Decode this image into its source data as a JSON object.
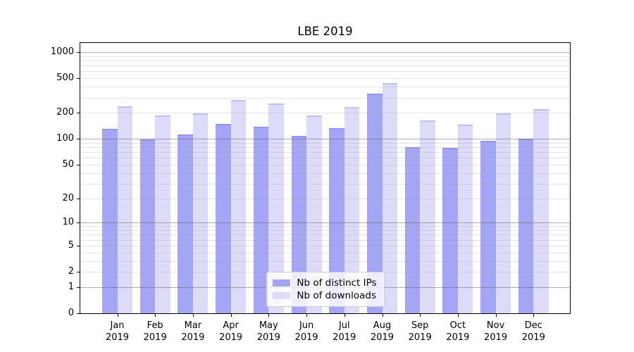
{
  "title": "LBE 2019",
  "chart_data": {
    "type": "bar",
    "title": "LBE 2019",
    "categories": [
      "Jan 2019",
      "Feb 2019",
      "Mar 2019",
      "Apr 2019",
      "May 2019",
      "Jun 2019",
      "Jul 2019",
      "Aug 2019",
      "Sep 2019",
      "Oct 2019",
      "Nov 2019",
      "Dec 2019"
    ],
    "series": [
      {
        "name": "Nb of distinct IPs",
        "color": "#a5a5f5",
        "values": [
          130,
          98,
          112,
          150,
          138,
          108,
          132,
          333,
          80,
          78,
          95,
          100
        ]
      },
      {
        "name": "Nb of downloads",
        "color": "#dcdcf9",
        "values": [
          240,
          188,
          199,
          280,
          256,
          188,
          232,
          442,
          164,
          147,
          197,
          219
        ]
      }
    ],
    "y_scale": "symlog",
    "y_ticks": [
      0,
      1,
      2,
      5,
      10,
      20,
      50,
      100,
      200,
      500,
      1000
    ],
    "ylim": [
      0,
      1275
    ],
    "xlabel": "",
    "ylabel": "",
    "grid": true,
    "legend": {
      "position": "lower center"
    },
    "colors": {
      "bar_distinct_ips": "#a5a5f5",
      "bar_downloads": "#dcdcf9",
      "grid_major": "#9a9a9a",
      "grid_minor": "#e4e4e4",
      "axis": "#000000",
      "text": "#000000"
    }
  }
}
